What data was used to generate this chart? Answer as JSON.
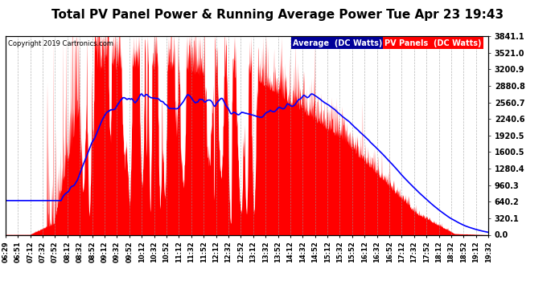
{
  "title": "Total PV Panel Power & Running Average Power Tue Apr 23 19:43",
  "copyright": "Copyright 2019 Cartronics.com",
  "ylabel_right_ticks": [
    0.0,
    320.1,
    640.2,
    960.3,
    1280.4,
    1600.5,
    1920.5,
    2240.6,
    2560.7,
    2880.8,
    3200.9,
    3521.0,
    3841.1
  ],
  "ymax": 3841.1,
  "ymin": 0.0,
  "pv_color": "#FF0000",
  "avg_color": "#0000FF",
  "background_color": "#FFFFFF",
  "plot_bg_color": "#FFFFFF",
  "grid_color": "#999999",
  "title_fontsize": 11,
  "copyright_fontsize": 6,
  "legend_avg_label": "Average  (DC Watts)",
  "legend_pv_label": "PV Panels  (DC Watts)",
  "legend_avg_color": "#000099",
  "legend_pv_color": "#FF0000",
  "x_tick_labels": [
    "06:29",
    "06:51",
    "07:12",
    "07:32",
    "07:52",
    "08:12",
    "08:32",
    "08:52",
    "09:12",
    "09:32",
    "09:52",
    "10:12",
    "10:32",
    "10:52",
    "11:12",
    "11:32",
    "11:52",
    "12:12",
    "12:32",
    "12:52",
    "13:12",
    "13:32",
    "13:52",
    "14:12",
    "14:32",
    "14:52",
    "15:12",
    "15:32",
    "15:52",
    "16:12",
    "16:32",
    "16:52",
    "17:12",
    "17:32",
    "17:52",
    "18:12",
    "18:32",
    "18:52",
    "19:12",
    "19:32"
  ]
}
